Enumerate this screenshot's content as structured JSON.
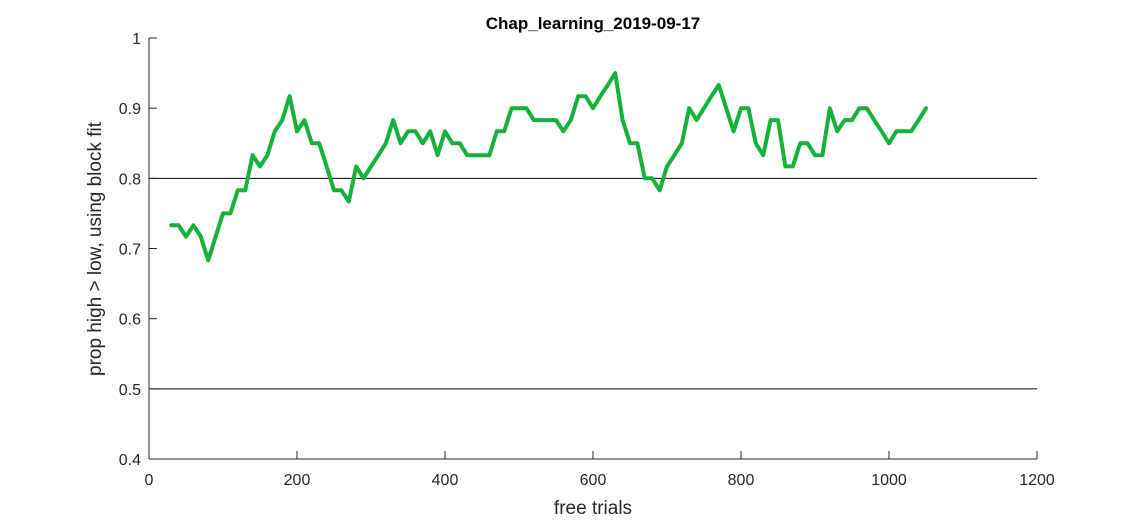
{
  "chart_data": {
    "type": "line",
    "title": "Chap_learning_2019-09-17",
    "xlabel": "free trials",
    "ylabel": "prop high > low, using block fit",
    "xlim": [
      0,
      1200
    ],
    "ylim": [
      0.4,
      1
    ],
    "xticks": [
      0,
      200,
      400,
      600,
      800,
      1000,
      1200
    ],
    "xtick_labels": [
      "0",
      "200",
      "400",
      "600",
      "800",
      "1000",
      "1200"
    ],
    "yticks": [
      0.4,
      0.5,
      0.6,
      0.7,
      0.8,
      0.9,
      1
    ],
    "ytick_labels": [
      "0.4",
      "0.5",
      "0.6",
      "0.7",
      "0.8",
      "0.9",
      "1"
    ],
    "reference_lines": [
      0.5,
      0.8
    ],
    "line_color": "#14b23a",
    "series": [
      {
        "x": [
          30,
          40,
          50,
          60,
          70,
          80,
          90,
          100,
          110,
          120,
          130,
          140,
          150,
          160,
          170,
          180,
          190,
          200,
          210,
          220,
          230,
          240,
          250,
          260,
          270,
          280,
          290,
          300,
          310,
          320,
          330,
          340,
          350,
          360,
          370,
          380,
          390,
          400,
          410,
          420,
          430,
          440,
          450,
          460,
          470,
          480,
          490,
          500,
          510,
          520,
          530,
          540,
          550,
          560,
          570,
          580,
          590,
          600,
          610,
          620,
          630,
          640,
          650,
          660,
          670,
          680,
          690,
          700,
          710,
          720,
          730,
          740,
          750,
          760,
          770,
          780,
          790,
          800,
          810,
          820,
          830,
          840,
          850,
          860,
          870,
          880,
          890,
          900,
          910,
          920,
          930,
          940,
          950,
          960,
          970,
          980,
          990,
          1000,
          1010,
          1020,
          1030,
          1040,
          1050
        ],
        "y": [
          0.733,
          0.733,
          0.717,
          0.733,
          0.717,
          0.683,
          0.717,
          0.75,
          0.75,
          0.783,
          0.783,
          0.833,
          0.817,
          0.833,
          0.867,
          0.883,
          0.917,
          0.867,
          0.883,
          0.85,
          0.85,
          0.817,
          0.783,
          0.783,
          0.767,
          0.817,
          0.8,
          0.817,
          0.833,
          0.85,
          0.883,
          0.85,
          0.867,
          0.867,
          0.85,
          0.867,
          0.833,
          0.867,
          0.85,
          0.85,
          0.833,
          0.833,
          0.833,
          0.833,
          0.867,
          0.867,
          0.9,
          0.9,
          0.9,
          0.883,
          0.883,
          0.883,
          0.883,
          0.867,
          0.883,
          0.917,
          0.917,
          0.9,
          0.917,
          0.933,
          0.95,
          0.883,
          0.85,
          0.85,
          0.8,
          0.8,
          0.783,
          0.817,
          0.833,
          0.85,
          0.9,
          0.883,
          0.9,
          0.917,
          0.933,
          0.9,
          0.867,
          0.9,
          0.9,
          0.85,
          0.833,
          0.883,
          0.883,
          0.817,
          0.817,
          0.85,
          0.85,
          0.833,
          0.833,
          0.9,
          0.867,
          0.883,
          0.883,
          0.9,
          0.9,
          0.883,
          0.867,
          0.85,
          0.867,
          0.867,
          0.867,
          0.883,
          0.9
        ]
      }
    ],
    "grid": false,
    "legend": "none"
  }
}
